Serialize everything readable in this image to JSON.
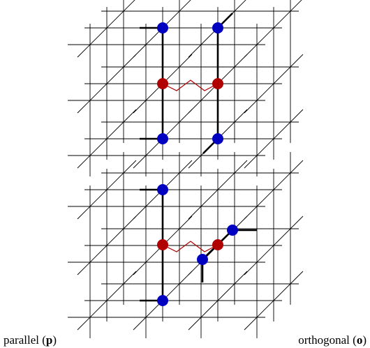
{
  "captions": [
    {
      "text": "parallel (",
      "symbol": "p",
      "end": ")"
    },
    {
      "text": "orthogonal (",
      "symbol": "o",
      "end": ")"
    }
  ]
}
